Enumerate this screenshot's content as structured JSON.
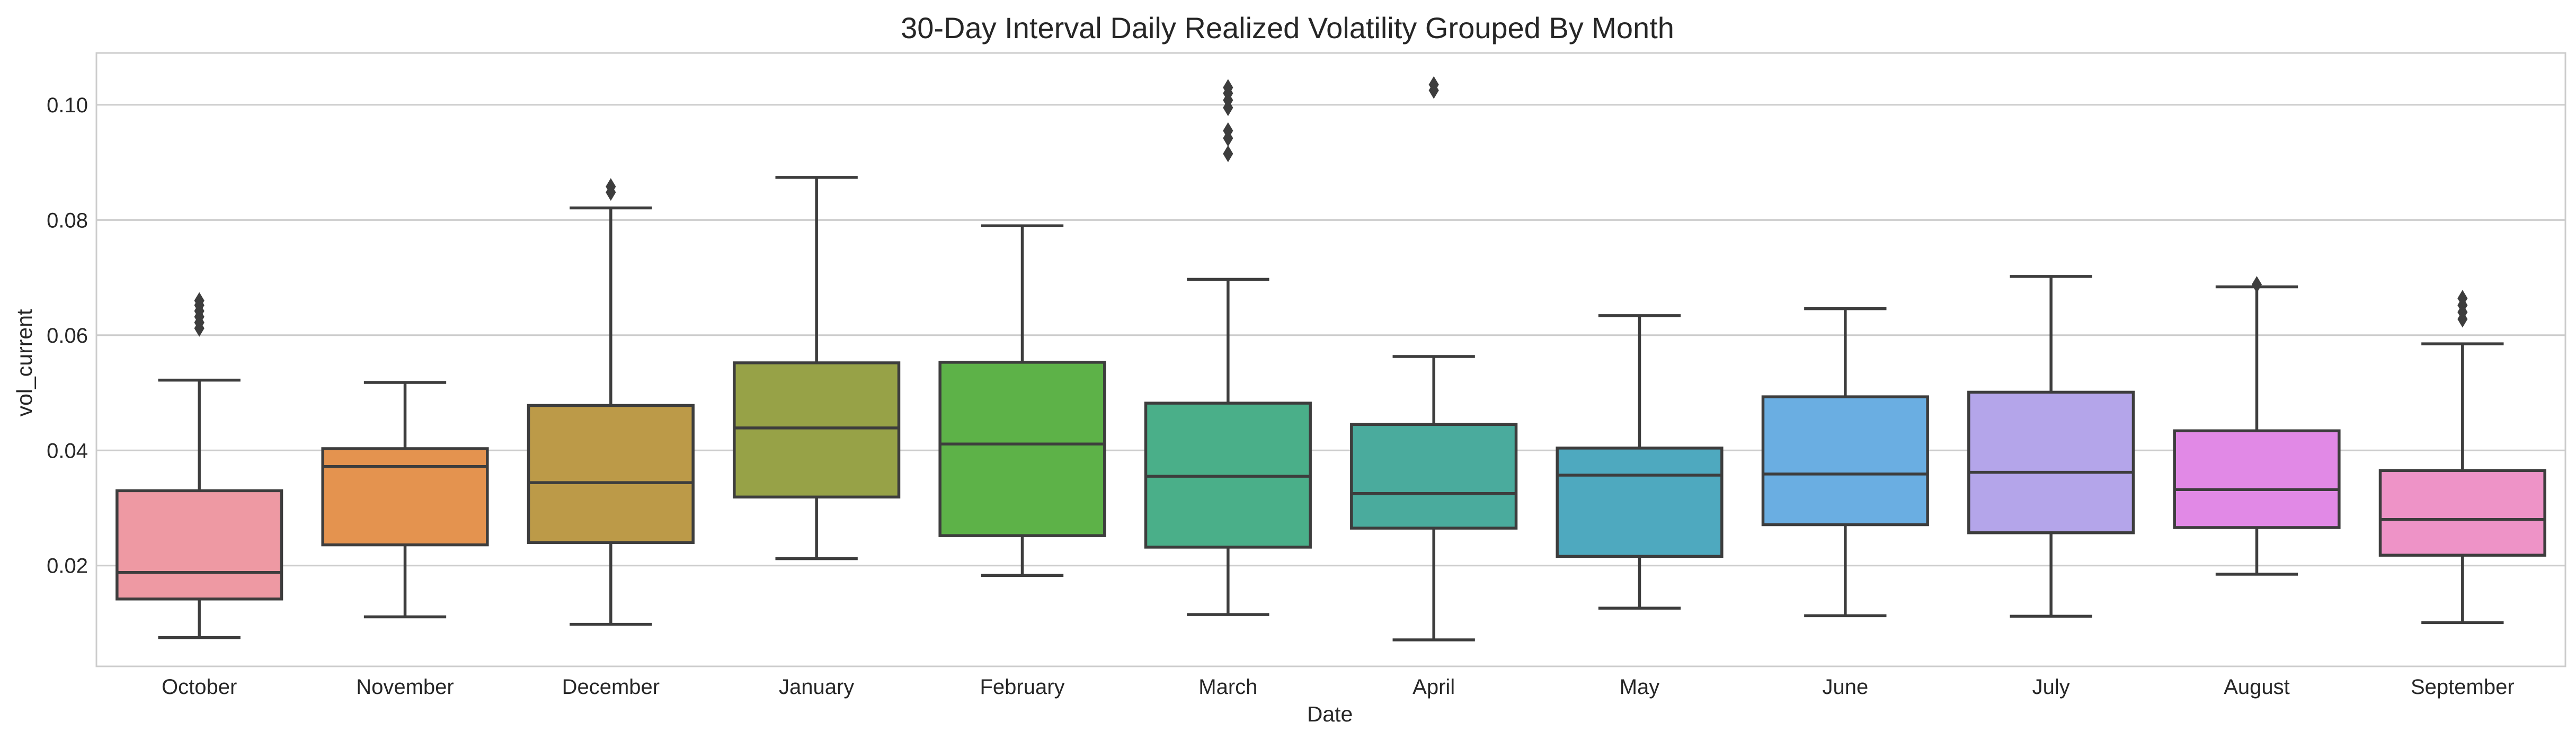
{
  "chart_data": {
    "type": "box",
    "title": "30-Day Interval Daily Realized Volatility Grouped By Month",
    "xlabel": "Date",
    "ylabel": "vol_current",
    "ylim": [
      0.0025,
      0.109
    ],
    "yticks": [
      0.02,
      0.04,
      0.06,
      0.08,
      0.1
    ],
    "ytick_labels": [
      "0.02",
      "0.04",
      "0.06",
      "0.08",
      "0.10"
    ],
    "grid": "horizontal",
    "categories": [
      "October",
      "November",
      "December",
      "January",
      "February",
      "March",
      "April",
      "May",
      "June",
      "July",
      "August",
      "September"
    ],
    "boxes": [
      {
        "category": "October",
        "color": "#ee99a3",
        "whislo": 0.0075,
        "q1": 0.0142,
        "med": 0.0188,
        "q3": 0.033,
        "whishi": 0.0522,
        "fliers": [
          0.0612,
          0.0622,
          0.0632,
          0.0642,
          0.0652,
          0.066
        ]
      },
      {
        "category": "November",
        "color": "#e4934f",
        "whislo": 0.0111,
        "q1": 0.0236,
        "med": 0.0372,
        "q3": 0.0403,
        "whishi": 0.0518,
        "fliers": []
      },
      {
        "category": "December",
        "color": "#bc9a48",
        "whislo": 0.0098,
        "q1": 0.024,
        "med": 0.0344,
        "q3": 0.0478,
        "whishi": 0.0821,
        "fliers": [
          0.0848,
          0.0858
        ]
      },
      {
        "category": "January",
        "color": "#97a247",
        "whislo": 0.0212,
        "q1": 0.0319,
        "med": 0.0439,
        "q3": 0.0552,
        "whishi": 0.0874,
        "fliers": []
      },
      {
        "category": "February",
        "color": "#5db248",
        "whislo": 0.0183,
        "q1": 0.0252,
        "med": 0.0411,
        "q3": 0.0553,
        "whishi": 0.079,
        "fliers": []
      },
      {
        "category": "March",
        "color": "#4aaf89",
        "whislo": 0.0115,
        "q1": 0.0232,
        "med": 0.0355,
        "q3": 0.0482,
        "whishi": 0.0697,
        "fliers": [
          0.0915,
          0.0942,
          0.0955,
          0.0995,
          0.1008,
          0.102,
          0.103
        ]
      },
      {
        "category": "April",
        "color": "#4aab9d",
        "whislo": 0.0071,
        "q1": 0.0265,
        "med": 0.0325,
        "q3": 0.0445,
        "whishi": 0.0563,
        "fliers": [
          0.1025,
          0.1035
        ]
      },
      {
        "category": "May",
        "color": "#4ea9bf",
        "whislo": 0.0126,
        "q1": 0.0216,
        "med": 0.0357,
        "q3": 0.0404,
        "whishi": 0.0634,
        "fliers": []
      },
      {
        "category": "June",
        "color": "#6aaee2",
        "whislo": 0.0113,
        "q1": 0.0271,
        "med": 0.0359,
        "q3": 0.0493,
        "whishi": 0.0646,
        "fliers": []
      },
      {
        "category": "July",
        "color": "#b4a5ea",
        "whislo": 0.0112,
        "q1": 0.0257,
        "med": 0.0362,
        "q3": 0.0501,
        "whishi": 0.0702,
        "fliers": []
      },
      {
        "category": "August",
        "color": "#e189e6",
        "whislo": 0.0185,
        "q1": 0.0266,
        "med": 0.0332,
        "q3": 0.0434,
        "whishi": 0.0684,
        "fliers": [
          0.0688
        ]
      },
      {
        "category": "September",
        "color": "#ee93c7",
        "whislo": 0.0101,
        "q1": 0.0218,
        "med": 0.028,
        "q3": 0.0365,
        "whishi": 0.0585,
        "fliers": [
          0.0628,
          0.064,
          0.0652,
          0.0664
        ]
      }
    ]
  }
}
